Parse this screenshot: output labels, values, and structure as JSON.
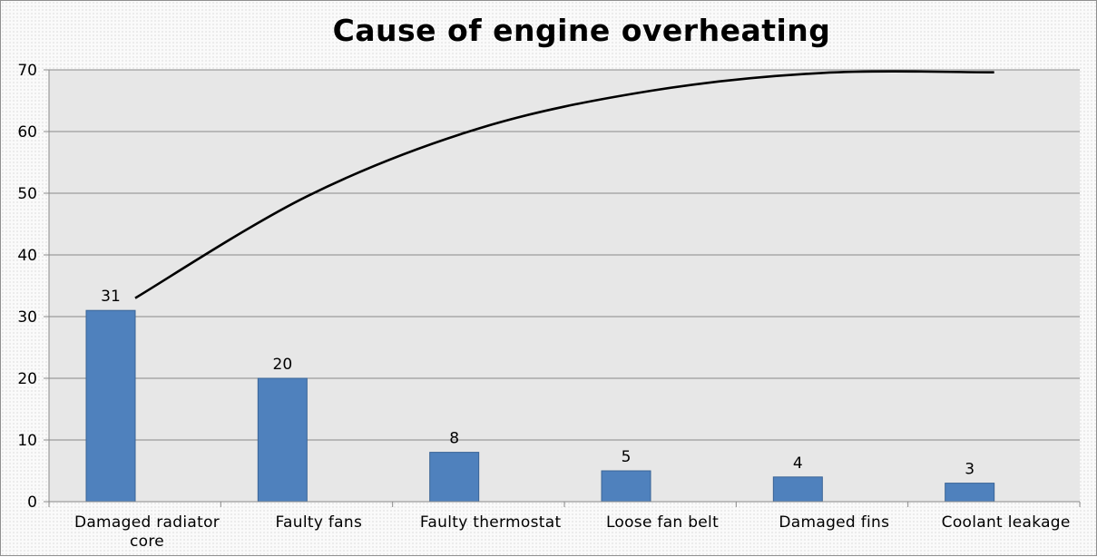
{
  "chart_data": {
    "type": "bar",
    "title": "Cause of engine overheating",
    "xlabel": "",
    "ylabel": "",
    "ylim": [
      0,
      70
    ],
    "yticks": [
      0,
      10,
      20,
      30,
      40,
      50,
      60,
      70
    ],
    "grid": true,
    "legend": "none",
    "categories": [
      [
        "Damaged radiator",
        "core"
      ],
      [
        "Faulty fans"
      ],
      [
        "Faulty thermostat"
      ],
      [
        "Loose fan belt"
      ],
      [
        "Damaged fins"
      ],
      [
        "Coolant leakage"
      ]
    ],
    "series": [
      {
        "values": [
          31,
          20,
          8,
          5,
          4,
          3
        ],
        "color": "#4f81bd",
        "data_labels": [
          "31",
          "20",
          "8",
          "5",
          "4",
          "3"
        ]
      }
    ],
    "trendline": {
      "type": "polynomial",
      "color": "#000000",
      "x": [
        1,
        2,
        3,
        4,
        5,
        6
      ],
      "y": [
        33,
        49.5,
        60.5,
        66.6,
        69.5,
        69.6
      ]
    }
  }
}
